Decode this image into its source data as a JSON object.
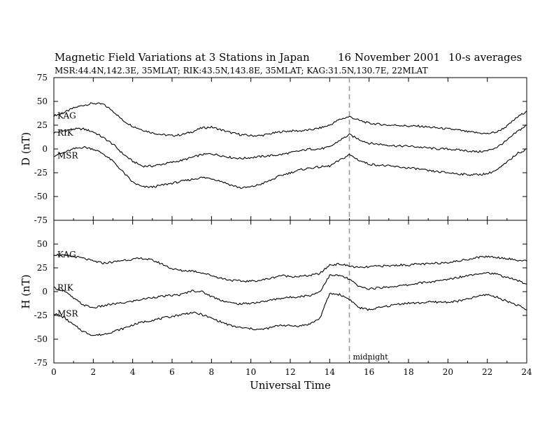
{
  "header": {
    "title": "Magnetic Field Variations at 3 Stations in Japan",
    "date": "16 November 2001",
    "averaging": "10-s averages",
    "stations_line": "MSR:44.4N,142.3E, 35MLAT;  RIK:43.5N,143.8E, 35MLAT;  KAG:31.5N,130.7E, 22MLAT"
  },
  "colors": {
    "trace": "#000000",
    "midnight_line": "#9a9a9a"
  },
  "chart_data": [
    {
      "type": "line",
      "panel": "top",
      "ylabel": "D (nT)",
      "xlabel": "",
      "xlim": [
        0,
        24
      ],
      "ylim": [
        -75,
        75
      ],
      "yticks": [
        -75,
        -50,
        -25,
        0,
        25,
        50,
        75
      ],
      "ytick_labels": [
        "-75",
        "-50",
        "-25",
        "0",
        "25",
        "50",
        "75"
      ],
      "x": [
        0,
        0.5,
        1,
        1.5,
        2,
        2.5,
        3,
        3.5,
        4,
        4.5,
        5,
        5.5,
        6,
        6.5,
        7,
        7.5,
        8,
        8.5,
        9,
        9.5,
        10,
        10.5,
        11,
        11.5,
        12,
        12.5,
        13,
        13.5,
        14,
        14.5,
        15,
        15.5,
        16,
        16.5,
        17,
        17.5,
        18,
        18.5,
        19,
        19.5,
        20,
        20.5,
        21,
        21.5,
        22,
        22.5,
        23,
        23.5,
        24
      ],
      "series": [
        {
          "name": "KAG",
          "values": [
            35,
            38,
            43,
            46,
            48,
            47,
            40,
            30,
            24,
            20,
            17,
            15,
            14,
            15,
            18,
            22,
            23,
            20,
            17,
            15,
            14,
            14,
            16,
            18,
            19,
            19,
            20,
            22,
            25,
            31,
            34,
            30,
            27,
            26,
            25,
            25,
            24,
            24,
            23,
            22,
            21,
            20,
            18,
            17,
            16,
            18,
            24,
            33,
            40
          ]
        },
        {
          "name": "RIK",
          "values": [
            17,
            19,
            21,
            21,
            18,
            12,
            5,
            -5,
            -13,
            -18,
            -18,
            -16,
            -14,
            -12,
            -9,
            -6,
            -5,
            -7,
            -9,
            -10,
            -9,
            -8,
            -7,
            -6,
            -4,
            -2,
            0,
            0,
            2,
            9,
            15,
            10,
            6,
            5,
            4,
            3,
            3,
            2,
            1,
            0,
            0,
            -1,
            -2,
            -3,
            -2,
            2,
            9,
            18,
            25
          ]
        },
        {
          "name": "MSR",
          "values": [
            -7,
            -4,
            0,
            2,
            0,
            -5,
            -13,
            -24,
            -35,
            -40,
            -40,
            -38,
            -36,
            -34,
            -32,
            -30,
            -31,
            -34,
            -38,
            -41,
            -40,
            -37,
            -33,
            -28,
            -25,
            -22,
            -20,
            -19,
            -18,
            -12,
            -6,
            -12,
            -16,
            -17,
            -18,
            -19,
            -20,
            -21,
            -23,
            -24,
            -25,
            -26,
            -27,
            -27,
            -26,
            -22,
            -14,
            -5,
            0
          ]
        }
      ]
    },
    {
      "type": "line",
      "panel": "bottom",
      "ylabel": "H (nT)",
      "xlabel": "Universal Time",
      "xlim": [
        0,
        24
      ],
      "ylim": [
        -75,
        75
      ],
      "yticks": [
        -75,
        -50,
        -25,
        0,
        25,
        50
      ],
      "ytick_labels": [
        "-75",
        "-50",
        "-25",
        "0",
        "25",
        "50"
      ],
      "xticks": [
        0,
        2,
        4,
        6,
        8,
        10,
        12,
        14,
        16,
        18,
        20,
        22,
        24
      ],
      "xtick_labels": [
        "0",
        "2",
        "4",
        "6",
        "8",
        "10",
        "12",
        "14",
        "16",
        "18",
        "20",
        "22",
        "24"
      ],
      "annotation": {
        "text": "midnight",
        "x": 15
      },
      "x": [
        0,
        0.5,
        1,
        1.5,
        2,
        2.5,
        3,
        3.5,
        4,
        4.5,
        5,
        5.5,
        6,
        6.5,
        7,
        7.5,
        8,
        8.5,
        9,
        9.5,
        10,
        10.5,
        11,
        11.5,
        12,
        12.5,
        13,
        13.5,
        14,
        14.5,
        15,
        15.5,
        16,
        16.5,
        17,
        17.5,
        18,
        18.5,
        19,
        19.5,
        20,
        20.5,
        21,
        21.5,
        22,
        22.5,
        23,
        23.5,
        24
      ],
      "series": [
        {
          "name": "KAG",
          "values": [
            39,
            38,
            37,
            35,
            32,
            30,
            31,
            33,
            34,
            35,
            33,
            29,
            24,
            22,
            22,
            20,
            17,
            14,
            12,
            11,
            11,
            12,
            14,
            17,
            16,
            16,
            17,
            19,
            28,
            29,
            27,
            25,
            26,
            27,
            27,
            28,
            28,
            29,
            29,
            30,
            31,
            32,
            34,
            36,
            37,
            36,
            35,
            33,
            32
          ]
        },
        {
          "name": "RIK",
          "values": [
            4,
            1,
            -7,
            -14,
            -17,
            -15,
            -13,
            -12,
            -10,
            -8,
            -6,
            -5,
            -4,
            -3,
            1,
            0,
            -5,
            -9,
            -12,
            -13,
            -12,
            -11,
            -9,
            -7,
            -6,
            -5,
            -4,
            0,
            17,
            17,
            13,
            5,
            3,
            4,
            5,
            6,
            7,
            9,
            10,
            11,
            13,
            15,
            17,
            19,
            20,
            18,
            15,
            12,
            8
          ]
        },
        {
          "name": "MSR",
          "values": [
            -23,
            -27,
            -35,
            -42,
            -46,
            -45,
            -42,
            -39,
            -35,
            -32,
            -30,
            -28,
            -26,
            -24,
            -22,
            -24,
            -28,
            -32,
            -36,
            -38,
            -39,
            -40,
            -38,
            -35,
            -36,
            -36,
            -34,
            -28,
            -2,
            -3,
            -8,
            -17,
            -19,
            -17,
            -15,
            -13,
            -12,
            -12,
            -11,
            -11,
            -11,
            -10,
            -8,
            -5,
            -3,
            -6,
            -10,
            -14,
            -19
          ]
        }
      ]
    }
  ]
}
